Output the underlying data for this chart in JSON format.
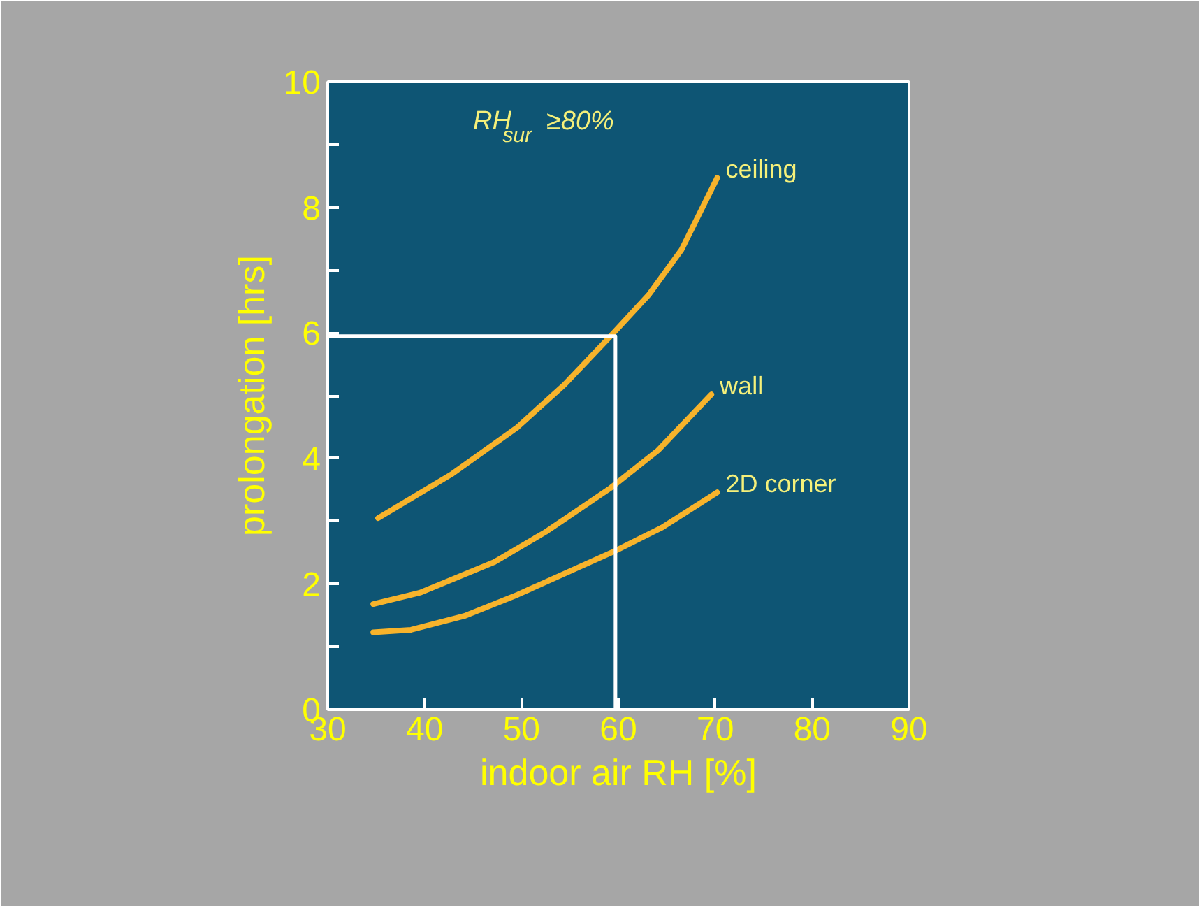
{
  "chart_data": {
    "type": "line",
    "xlabel": "indoor air RH [%]",
    "ylabel": "prolongation [hrs]",
    "annotations": [
      "RH$_{sur}$ ≥80%"
    ],
    "xlim": [
      30,
      90
    ],
    "xticks": [
      30,
      40,
      50,
      60,
      70,
      80,
      90
    ],
    "ylim": [
      0,
      10
    ],
    "yticks": [
      0,
      {
        "value": 1,
        "label": null
      },
      2,
      {
        "value": 3,
        "label": null
      },
      4,
      {
        "value": 5,
        "label": null
      },
      6,
      {
        "value": 7,
        "label": null
      },
      8,
      {
        "value": 9,
        "label": null
      },
      10
    ],
    "grid": false,
    "marker": "none",
    "line_style": "solid",
    "series": [
      {
        "name": "ceiling",
        "color": "#f7b32b",
        "x": [
          35.2,
          42.9,
          49.6,
          54.4,
          59.2,
          63.1,
          66.5,
          70.2
        ],
        "values": [
          3.05,
          3.76,
          4.5,
          5.17,
          5.95,
          6.6,
          7.32,
          8.47
        ]
      },
      {
        "name": "wall",
        "color": "#f7b32b",
        "x": [
          34.7,
          39.5,
          47.2,
          52.5,
          59.2,
          64.1,
          69.6
        ],
        "values": [
          1.68,
          1.86,
          2.35,
          2.83,
          3.53,
          4.13,
          5.02
        ]
      },
      {
        "name": "2D corner",
        "color": "#f7b32b",
        "x": [
          34.7,
          38.6,
          44.1,
          49.6,
          59.7,
          64.5,
          70.2
        ],
        "values": [
          1.23,
          1.27,
          1.49,
          1.83,
          2.53,
          2.9,
          3.46
        ]
      },
      {
        "color": "#ffffff",
        "x": [
          59.7,
          59.7,
          30
        ],
        "values": [
          0,
          5.95,
          5.95
        ]
      }
    ]
  }
}
